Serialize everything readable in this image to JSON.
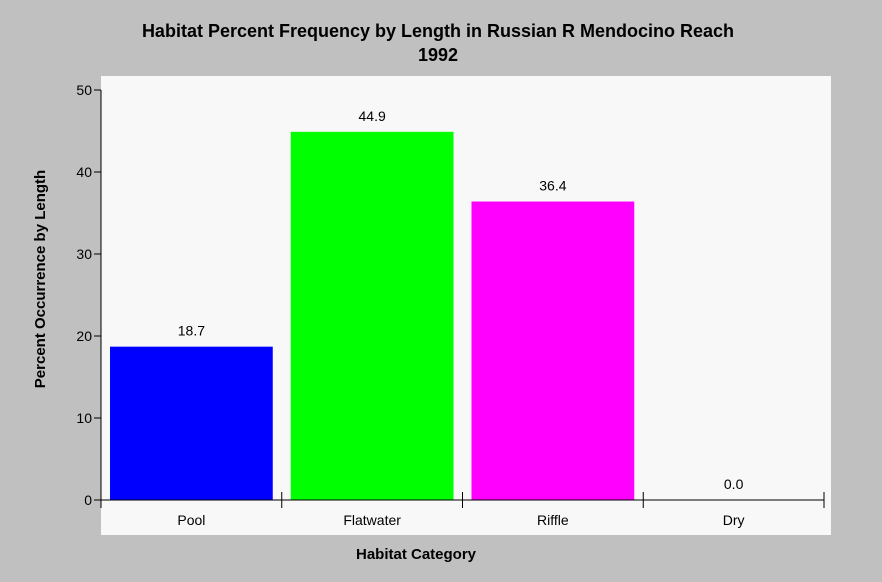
{
  "chart_data": {
    "type": "bar",
    "title": "Habitat Percent Frequency by Length in Russian R Mendocino Reach",
    "subtitle": "1992",
    "xlabel": "Habitat Category",
    "ylabel": "Percent Occurrence by Length",
    "categories": [
      "Pool",
      "Flatwater",
      "Riffle",
      "Dry"
    ],
    "values": [
      18.7,
      44.9,
      36.4,
      0.0
    ],
    "value_labels": [
      "18.7",
      "44.9",
      "36.4",
      "0.0"
    ],
    "colors": [
      "#0000ff",
      "#00ff00",
      "#ff00ff",
      "#c0c0c0"
    ],
    "ylim": [
      0,
      50
    ],
    "yticks": [
      "0",
      "10",
      "20",
      "30",
      "40",
      "50"
    ],
    "grid": false,
    "legend": "none",
    "plot_background": "#f8f8f8",
    "page_background": "#c0c0c0"
  }
}
